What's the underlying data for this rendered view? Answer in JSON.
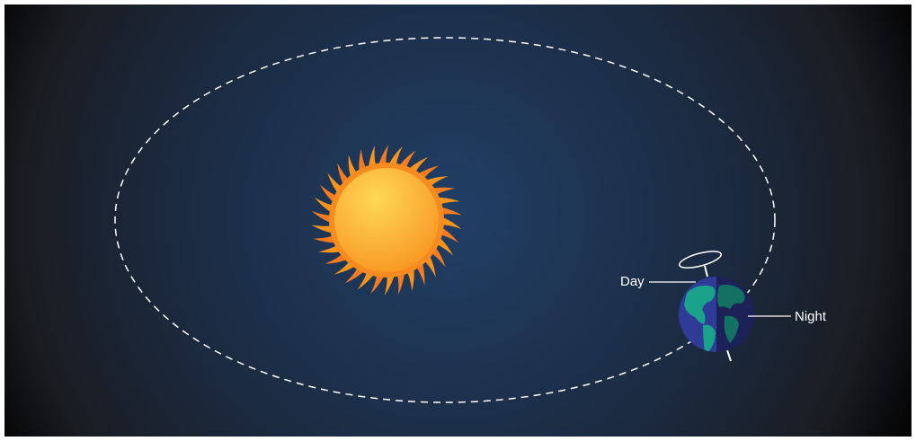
{
  "labels": {
    "day": "Day",
    "night": "Night"
  }
}
